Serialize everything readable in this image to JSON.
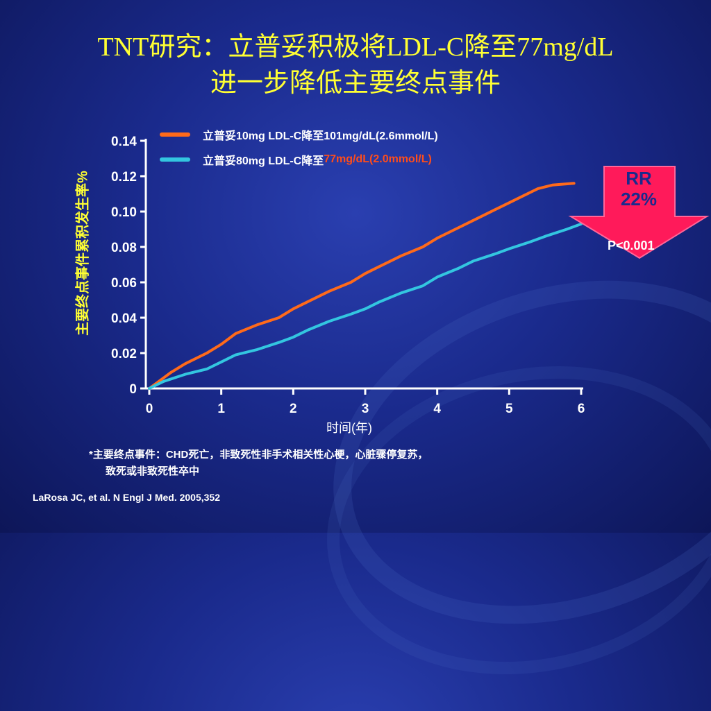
{
  "title": {
    "line1": "TNT研究：立普妥积极将LDL-C降至77mg/dL",
    "line2": "进一步降低主要终点事件"
  },
  "legend": [
    {
      "text": "立普妥10mg LDL-C降至101mg/dL(2.6mmol/L)",
      "highlight": "",
      "color": "#ff6a1a"
    },
    {
      "text": "立普妥80mg LDL-C降至",
      "highlight": "77mg/dL(2.0mmol/L)",
      "color": "#33c6e0"
    }
  ],
  "rr": {
    "label": "RR",
    "value": "22%",
    "arrow_color": "#ff1a5a"
  },
  "p_value": "P<0.001",
  "footnote": {
    "line1": "*主要终点事件：CHD死亡，非致死性非手术相关性心梗，心脏骤停复苏，",
    "line2": "致死或非致死性卒中"
  },
  "citation": "LaRosa JC, et al. N Engl J Med. 2005,352",
  "colors": {
    "title": "#ffff33",
    "highlight": "#ff4d1a",
    "axis": "#ffffff"
  },
  "chart_data": {
    "type": "line",
    "xlabel": "时间(年)",
    "ylabel": "主要终点事件累积发生率%",
    "xlim": [
      0,
      6
    ],
    "ylim": [
      0,
      0.14
    ],
    "x_ticks": [
      "0",
      "1",
      "2",
      "3",
      "4",
      "5",
      "6"
    ],
    "y_ticks": [
      "0",
      "0.02",
      "0.04",
      "0.06",
      "0.08",
      "0.10",
      "0.12",
      "0.14"
    ],
    "series": [
      {
        "name": "立普妥10mg LDL-C降至101mg/dL(2.6mmol/L)",
        "color": "#ff6a1a",
        "x": [
          0,
          0.2,
          0.3,
          0.5,
          0.8,
          1.0,
          1.2,
          1.5,
          1.8,
          2.0,
          2.2,
          2.5,
          2.8,
          3.0,
          3.2,
          3.5,
          3.8,
          4.0,
          4.3,
          4.5,
          4.8,
          5.0,
          5.2,
          5.4,
          5.6,
          5.9
        ],
        "y": [
          0,
          0.006,
          0.009,
          0.014,
          0.02,
          0.025,
          0.031,
          0.036,
          0.04,
          0.045,
          0.049,
          0.055,
          0.06,
          0.065,
          0.069,
          0.075,
          0.08,
          0.085,
          0.091,
          0.095,
          0.101,
          0.105,
          0.109,
          0.113,
          0.115,
          0.116
        ]
      },
      {
        "name": "立普妥80mg LDL-C降至77mg/dL(2.0mmol/L)",
        "color": "#33c6e0",
        "x": [
          0,
          0.2,
          0.5,
          0.8,
          1.0,
          1.2,
          1.5,
          1.8,
          2.0,
          2.2,
          2.5,
          2.8,
          3.0,
          3.2,
          3.5,
          3.8,
          4.0,
          4.3,
          4.5,
          4.8,
          5.0,
          5.3,
          5.5,
          5.8,
          6.0
        ],
        "y": [
          0,
          0.004,
          0.008,
          0.011,
          0.015,
          0.019,
          0.022,
          0.026,
          0.029,
          0.033,
          0.038,
          0.042,
          0.045,
          0.049,
          0.054,
          0.058,
          0.063,
          0.068,
          0.072,
          0.076,
          0.079,
          0.083,
          0.086,
          0.09,
          0.093
        ]
      }
    ]
  }
}
